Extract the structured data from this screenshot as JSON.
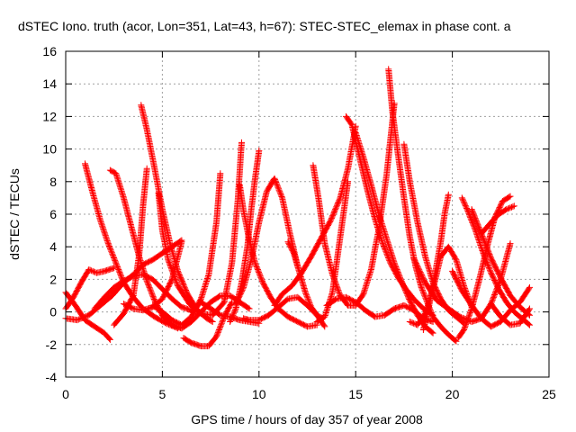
{
  "chart_data": {
    "type": "scatter",
    "title": "dSTEC Iono. truth (acor, Lon=351, Lat=43, h=67): STEC-STEC_elemax in phase cont. a",
    "xlabel": "GPS time / hours of day 357 of year 2008",
    "ylabel": "dSTEC  / TECUs",
    "xlim": [
      0,
      25
    ],
    "ylim": [
      -4,
      16
    ],
    "x_ticks": [
      0,
      5,
      10,
      15,
      20,
      25
    ],
    "y_ticks": [
      -4,
      -2,
      0,
      2,
      4,
      6,
      8,
      10,
      12,
      14,
      16
    ],
    "grid": true,
    "marker": "plus",
    "color": "#ff0000",
    "series": [
      {
        "x": [
          0.0,
          0.5,
          1.0,
          1.5,
          2.0,
          2.3
        ],
        "y": [
          1.2,
          0.4,
          -0.5,
          -0.9,
          -1.3,
          -1.7
        ]
      },
      {
        "x": [
          0.0,
          0.4,
          0.8,
          1.2,
          1.6,
          2.0,
          2.5
        ],
        "y": [
          0.2,
          0.9,
          1.8,
          2.6,
          2.4,
          2.5,
          2.7
        ]
      },
      {
        "x": [
          0.0,
          0.6,
          1.2,
          1.8,
          2.4,
          3.0,
          3.6,
          4.0,
          4.5,
          5.0,
          5.5,
          6.0
        ],
        "y": [
          -0.4,
          -0.5,
          -0.2,
          0.4,
          1.0,
          1.8,
          2.4,
          2.9,
          3.2,
          3.6,
          4.0,
          4.4
        ]
      },
      {
        "x": [
          1.0,
          1.4,
          1.8,
          2.2,
          2.6,
          3.0,
          3.5,
          4.0,
          4.6,
          5.2,
          5.8
        ],
        "y": [
          9.1,
          7.3,
          5.6,
          4.2,
          3.0,
          1.8,
          0.9,
          0.2,
          -0.3,
          -0.7,
          -1.0
        ]
      },
      {
        "x": [
          1.5,
          2.0,
          2.5,
          3.0,
          3.5,
          4.0,
          4.5,
          5.0,
          5.5,
          6.0,
          6.5,
          7.0
        ],
        "y": [
          0.2,
          0.9,
          1.5,
          1.9,
          2.2,
          2.3,
          2.0,
          1.4,
          0.8,
          0.3,
          0.1,
          0.0
        ]
      },
      {
        "x": [
          2.3,
          2.6,
          3.0,
          3.4,
          3.8,
          4.2,
          4.6,
          5.0,
          5.5,
          6.0
        ],
        "y": [
          8.7,
          8.5,
          7.0,
          5.2,
          3.4,
          1.9,
          0.7,
          -0.2,
          -0.8,
          -1.0
        ]
      },
      {
        "x": [
          2.5,
          3.0,
          3.5,
          3.8,
          4.0,
          4.2
        ],
        "y": [
          -0.8,
          -0.1,
          1.0,
          3.5,
          6.5,
          8.8
        ]
      },
      {
        "x": [
          3.9,
          4.2,
          4.6,
          5.0,
          5.4,
          5.8,
          6.3,
          6.8,
          7.3,
          7.6
        ],
        "y": [
          12.7,
          11.2,
          8.8,
          6.3,
          4.2,
          2.5,
          1.1,
          0.1,
          -0.4,
          -0.6
        ]
      },
      {
        "x": [
          3.0,
          3.5,
          4.0,
          4.5,
          5.0,
          5.5,
          6.0
        ],
        "y": [
          0.5,
          0.2,
          0.1,
          0.3,
          0.8,
          2.0,
          4.3
        ]
      },
      {
        "x": [
          4.5,
          5.0,
          5.5,
          6.0,
          6.5,
          7.0,
          7.4,
          7.8,
          8.0
        ],
        "y": [
          0.4,
          0.0,
          -0.5,
          -0.8,
          -0.3,
          0.8,
          2.3,
          5.5,
          8.5
        ]
      },
      {
        "x": [
          4.8,
          5.0,
          5.3,
          5.8,
          6.4,
          7.0,
          7.6,
          8.2,
          8.6,
          8.9,
          9.1
        ],
        "y": [
          7.3,
          5.0,
          3.2,
          1.6,
          0.5,
          -0.1,
          -0.2,
          0.6,
          3.0,
          6.8,
          10.4
        ]
      },
      {
        "x": [
          5.0,
          5.5,
          6.0,
          6.5,
          7.0,
          7.5,
          8.0,
          8.5,
          9.0,
          9.5
        ],
        "y": [
          -0.2,
          -0.8,
          -1.0,
          -0.6,
          0.0,
          0.6,
          1.0,
          1.0,
          0.6,
          0.2
        ]
      },
      {
        "x": [
          6.1,
          6.5,
          7.0,
          7.4,
          7.8,
          8.2,
          8.6
        ],
        "y": [
          -1.6,
          -1.9,
          -2.1,
          -2.1,
          -1.5,
          -0.3,
          0.6
        ]
      },
      {
        "x": [
          6.5,
          7.0,
          7.5,
          8.0,
          8.5,
          9.0,
          9.5,
          10.0
        ],
        "y": [
          0.0,
          0.6,
          0.2,
          -0.2,
          -0.3,
          -0.5,
          -0.6,
          -0.7
        ]
      },
      {
        "x": [
          9.0,
          9.2,
          9.5,
          9.8,
          10.2,
          10.6,
          11.0,
          11.5,
          12.0,
          12.5,
          13.0
        ],
        "y": [
          7.8,
          6.2,
          4.4,
          3.0,
          1.8,
          0.9,
          0.2,
          -0.3,
          -0.6,
          -0.9,
          -0.8
        ]
      },
      {
        "x": [
          8.5,
          8.8,
          9.1,
          9.4,
          9.6,
          9.8,
          10.0
        ],
        "y": [
          -0.6,
          0.2,
          1.8,
          4.0,
          6.3,
          8.2,
          9.9
        ]
      },
      {
        "x": [
          8.8,
          9.2,
          9.6,
          10.0,
          10.4,
          10.8,
          11.2,
          11.6,
          12.0
        ],
        "y": [
          0.5,
          1.5,
          3.2,
          5.5,
          7.4,
          8.2,
          7.0,
          4.8,
          2.8
        ]
      },
      {
        "x": [
          9.2,
          9.5,
          10.0,
          10.5,
          11.0,
          11.5,
          12.0,
          12.5,
          13.0,
          13.4
        ],
        "y": [
          -0.4,
          -0.5,
          -0.5,
          -0.2,
          0.3,
          0.8,
          0.9,
          0.4,
          -0.2,
          -0.9
        ]
      },
      {
        "x": [
          10.8,
          11.2,
          11.7,
          12.2,
          12.7,
          13.2,
          13.7,
          14.2,
          14.6,
          15.0
        ],
        "y": [
          0.4,
          1.1,
          1.6,
          2.4,
          3.4,
          4.5,
          5.6,
          7.0,
          8.8,
          11.4
        ]
      },
      {
        "x": [
          11.5,
          11.8,
          12.1,
          12.4,
          12.7,
          13.0,
          13.3
        ],
        "y": [
          4.3,
          3.6,
          2.4,
          1.2,
          0.3,
          -0.2,
          -0.4
        ]
      },
      {
        "x": [
          12.8,
          13.1,
          13.4,
          13.8,
          14.2,
          14.6,
          15.0,
          15.4,
          15.8,
          16.2,
          16.6,
          17.0
        ],
        "y": [
          9.0,
          6.8,
          4.2,
          2.3,
          1.0,
          0.4,
          0.4,
          1.1,
          2.6,
          5.1,
          8.4,
          12.8
        ]
      },
      {
        "x": [
          13.0,
          13.4,
          13.8,
          14.2,
          14.6
        ],
        "y": [
          -0.6,
          -0.3,
          1.2,
          4.6,
          8.0
        ]
      },
      {
        "x": [
          13.5,
          14.0,
          14.5,
          15.0,
          15.5,
          16.0,
          16.5,
          17.0,
          17.5,
          18.0,
          18.5,
          19.0
        ],
        "y": [
          0.4,
          0.8,
          0.9,
          0.6,
          0.1,
          -0.3,
          -0.2,
          0.2,
          0.4,
          0.1,
          -0.4,
          -0.6
        ]
      },
      {
        "x": [
          14.5,
          14.8,
          15.2,
          15.6,
          16.0,
          16.4,
          16.8,
          17.2,
          17.6,
          18.0,
          18.5,
          19.0
        ],
        "y": [
          12.0,
          11.5,
          9.5,
          7.5,
          5.7,
          4.2,
          3.0,
          2.1,
          1.4,
          0.8,
          0.2,
          -0.2
        ]
      },
      {
        "x": [
          15.0,
          15.4,
          15.8,
          16.2,
          16.6,
          17.0,
          17.4,
          17.8,
          18.2,
          18.6,
          19.0
        ],
        "y": [
          11.0,
          9.5,
          7.8,
          6.0,
          4.5,
          3.0,
          1.8,
          0.7,
          -0.2,
          -0.9,
          -1.3
        ]
      },
      {
        "x": [
          16.7,
          16.9,
          17.2,
          17.5,
          17.8,
          18.1,
          18.4,
          18.7,
          19.0,
          19.4,
          19.8,
          20.2
        ],
        "y": [
          14.9,
          12.3,
          9.6,
          7.0,
          4.6,
          2.8,
          1.5,
          0.6,
          -0.3,
          -0.9,
          -1.4,
          -1.8
        ]
      },
      {
        "x": [
          17.5,
          17.8,
          18.2,
          18.6,
          19.0,
          19.4,
          19.8,
          20.2,
          20.6
        ],
        "y": [
          10.3,
          8.0,
          5.5,
          3.4,
          1.8,
          0.8,
          0.1,
          -0.3,
          -0.7
        ]
      },
      {
        "x": [
          17.8,
          18.2,
          18.6,
          19.0,
          19.4,
          19.8,
          20.2,
          20.6,
          21.0
        ],
        "y": [
          -0.6,
          -0.8,
          -0.1,
          1.4,
          3.4,
          4.0,
          3.2,
          1.6,
          0.3
        ]
      },
      {
        "x": [
          18.5,
          18.8,
          19.1,
          19.4,
          19.6,
          19.8
        ],
        "y": [
          -1.1,
          0.4,
          2.3,
          4.3,
          6.0,
          7.2
        ]
      },
      {
        "x": [
          18.0,
          18.6,
          19.2,
          19.8,
          20.4,
          21.0,
          21.5,
          22.0,
          22.5,
          23.0
        ],
        "y": [
          3.3,
          1.8,
          0.7,
          0.2,
          -0.3,
          -0.6,
          -0.4,
          0.5,
          2.0,
          4.2
        ]
      },
      {
        "x": [
          20.3,
          20.6,
          21.0,
          21.4,
          21.8,
          22.2,
          22.6,
          23.0
        ],
        "y": [
          -1.6,
          -1.1,
          0.2,
          2.0,
          4.0,
          5.8,
          6.8,
          7.1
        ]
      },
      {
        "x": [
          20.5,
          20.8,
          21.2,
          21.6,
          22.0,
          22.4,
          22.8,
          23.2,
          23.6,
          24.0
        ],
        "y": [
          7.0,
          6.2,
          5.0,
          3.6,
          2.4,
          1.4,
          0.6,
          0.0,
          -0.4,
          -0.8
        ]
      },
      {
        "x": [
          20.0,
          20.5,
          21.0,
          21.5,
          22.0,
          22.5,
          23.0,
          23.5,
          24.0
        ],
        "y": [
          2.5,
          1.3,
          0.4,
          -0.4,
          -0.9,
          -0.6,
          0.1,
          0.6,
          1.5
        ]
      },
      {
        "x": [
          21.0,
          21.5,
          22.0,
          22.5,
          23.0,
          23.5,
          24.0
        ],
        "y": [
          6.3,
          4.8,
          3.3,
          2.1,
          1.0,
          0.3,
          -0.2
        ]
      },
      {
        "x": [
          21.5,
          22.0,
          22.4,
          22.8,
          23.2
        ],
        "y": [
          4.8,
          5.5,
          6.0,
          6.3,
          6.5
        ]
      },
      {
        "x": [
          22.0,
          22.5,
          23.0,
          23.5,
          24.0
        ],
        "y": [
          0.5,
          -0.3,
          -0.8,
          -0.7,
          0.2
        ]
      }
    ]
  }
}
